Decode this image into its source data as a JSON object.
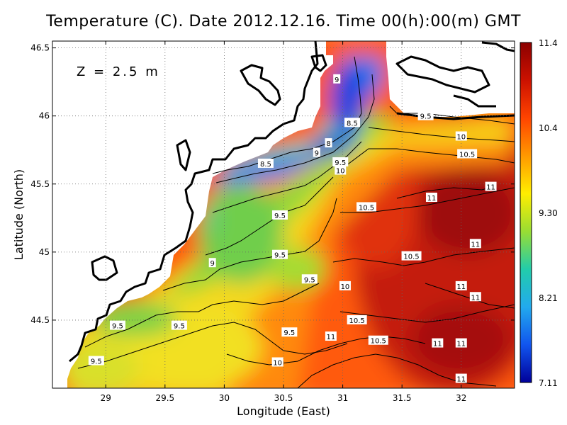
{
  "chart_data": {
    "type": "heatmap",
    "title": "Temperature (C). Date 2012.12.16. Time 00(h):00(m) GMT",
    "xlabel": "Longitude (East)",
    "ylabel": "Latitude (North)",
    "xlim": [
      28.55,
      32.45
    ],
    "ylim": [
      44.0,
      46.55
    ],
    "x_ticks": [
      "29",
      "29.5",
      "30",
      "30.5",
      "31",
      "31.5",
      "32"
    ],
    "y_ticks": [
      "44.5",
      "45",
      "45.5",
      "46",
      "46.5"
    ],
    "grid": true,
    "annotation": "Z = 2.5 m",
    "colorbar": {
      "min": 7.11,
      "max": 11.4,
      "labels": [
        "11.4",
        "10.4",
        "9.30",
        "8.21",
        "7.11"
      ],
      "colors": [
        "#8b0000",
        "#cc1100",
        "#ff4400",
        "#ff9900",
        "#ffee00",
        "#99dd33",
        "#22ccaa",
        "#22aaee",
        "#1155ee",
        "#000099"
      ]
    },
    "contour_labels": [
      {
        "lon": 30.95,
        "lat": 46.27,
        "text": "9"
      },
      {
        "lon": 31.7,
        "lat": 46.0,
        "text": "9.5"
      },
      {
        "lon": 31.08,
        "lat": 45.95,
        "text": "8.5"
      },
      {
        "lon": 30.88,
        "lat": 45.8,
        "text": "8"
      },
      {
        "lon": 32.0,
        "lat": 45.85,
        "text": "10"
      },
      {
        "lon": 30.78,
        "lat": 45.73,
        "text": "9"
      },
      {
        "lon": 32.05,
        "lat": 45.72,
        "text": "10.5"
      },
      {
        "lon": 30.35,
        "lat": 45.65,
        "text": "8.5"
      },
      {
        "lon": 30.98,
        "lat": 45.66,
        "text": "9.5"
      },
      {
        "lon": 30.98,
        "lat": 45.6,
        "text": "10"
      },
      {
        "lon": 32.25,
        "lat": 45.48,
        "text": "11"
      },
      {
        "lon": 31.75,
        "lat": 45.4,
        "text": "11"
      },
      {
        "lon": 31.2,
        "lat": 45.33,
        "text": "10.5"
      },
      {
        "lon": 30.47,
        "lat": 45.27,
        "text": "9.5"
      },
      {
        "lon": 32.12,
        "lat": 45.06,
        "text": "11"
      },
      {
        "lon": 30.47,
        "lat": 44.98,
        "text": "9.5"
      },
      {
        "lon": 31.58,
        "lat": 44.97,
        "text": "10.5"
      },
      {
        "lon": 29.9,
        "lat": 44.92,
        "text": "9"
      },
      {
        "lon": 30.72,
        "lat": 44.8,
        "text": "9.5"
      },
      {
        "lon": 31.02,
        "lat": 44.75,
        "text": "10"
      },
      {
        "lon": 32.0,
        "lat": 44.75,
        "text": "11"
      },
      {
        "lon": 32.12,
        "lat": 44.67,
        "text": "11"
      },
      {
        "lon": 31.12,
        "lat": 44.5,
        "text": "10.5"
      },
      {
        "lon": 29.1,
        "lat": 44.46,
        "text": "9.5"
      },
      {
        "lon": 29.62,
        "lat": 44.46,
        "text": "9.5"
      },
      {
        "lon": 30.55,
        "lat": 44.41,
        "text": "9.5"
      },
      {
        "lon": 30.9,
        "lat": 44.38,
        "text": "11"
      },
      {
        "lon": 31.3,
        "lat": 44.35,
        "text": "10.5"
      },
      {
        "lon": 31.8,
        "lat": 44.33,
        "text": "11"
      },
      {
        "lon": 32.0,
        "lat": 44.33,
        "text": "11"
      },
      {
        "lon": 28.92,
        "lat": 44.2,
        "text": "9.5"
      },
      {
        "lon": 30.45,
        "lat": 44.19,
        "text": "10"
      },
      {
        "lon": 32.0,
        "lat": 44.07,
        "text": "11"
      }
    ]
  }
}
